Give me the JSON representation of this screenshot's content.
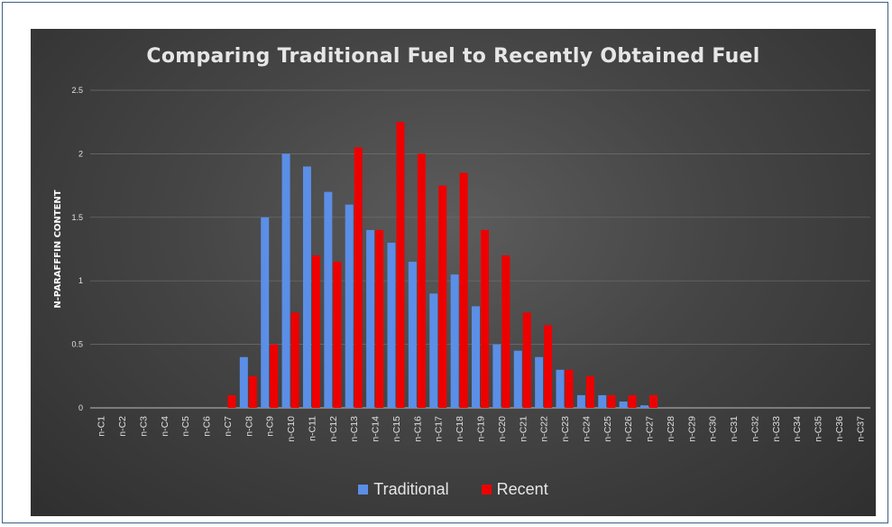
{
  "chart_data": {
    "type": "bar",
    "title": "Comparing Traditional Fuel to Recently Obtained Fuel",
    "xlabel": "",
    "ylabel": "N-PARAFFFIN CONTENT",
    "ylim": [
      0,
      2.5
    ],
    "yticks": [
      "0",
      "0.5",
      "1",
      "1.5",
      "2",
      "2.5"
    ],
    "grid": true,
    "legend_position": "bottom",
    "categories": [
      "n-C1",
      "n-C2",
      "n-C3",
      "n-C4",
      "n-C5",
      "n-C6",
      "n-C7",
      "n-C8",
      "n-C9",
      "n-C10",
      "n-C11",
      "n-C12",
      "n-C13",
      "n-C14",
      "n-C15",
      "n-C16",
      "n-C17",
      "n-C18",
      "n-C19",
      "n-C20",
      "n-C21",
      "n-C22",
      "n-C23",
      "n-C24",
      "n-C25",
      "n-C26",
      "n-C27",
      "n-C28",
      "n-C29",
      "n-C30",
      "n-C31",
      "n-C32",
      "n-C33",
      "n-C34",
      "n-C35",
      "n-C36",
      "n-C37"
    ],
    "series": [
      {
        "name": "Traditional",
        "color": "#5b8ee6",
        "values": [
          0,
          0,
          0,
          0,
          0,
          0,
          0,
          0.4,
          1.5,
          2.0,
          1.9,
          1.7,
          1.6,
          1.4,
          1.3,
          1.15,
          0.9,
          1.05,
          0.8,
          0.5,
          0.45,
          0.4,
          0.3,
          0.1,
          0.1,
          0.05,
          0.02,
          0,
          0,
          0,
          0,
          0,
          0,
          0,
          0,
          0,
          0
        ]
      },
      {
        "name": "Recent",
        "color": "#ee0000",
        "values": [
          0,
          0,
          0,
          0,
          0,
          0,
          0.1,
          0.25,
          0.5,
          0.75,
          1.2,
          1.15,
          2.05,
          1.4,
          2.25,
          2.0,
          1.75,
          1.85,
          1.4,
          1.2,
          0.75,
          0.65,
          0.3,
          0.25,
          0.1,
          0.1,
          0.1,
          0,
          0,
          0,
          0,
          0,
          0,
          0,
          0,
          0,
          0
        ]
      }
    ]
  }
}
